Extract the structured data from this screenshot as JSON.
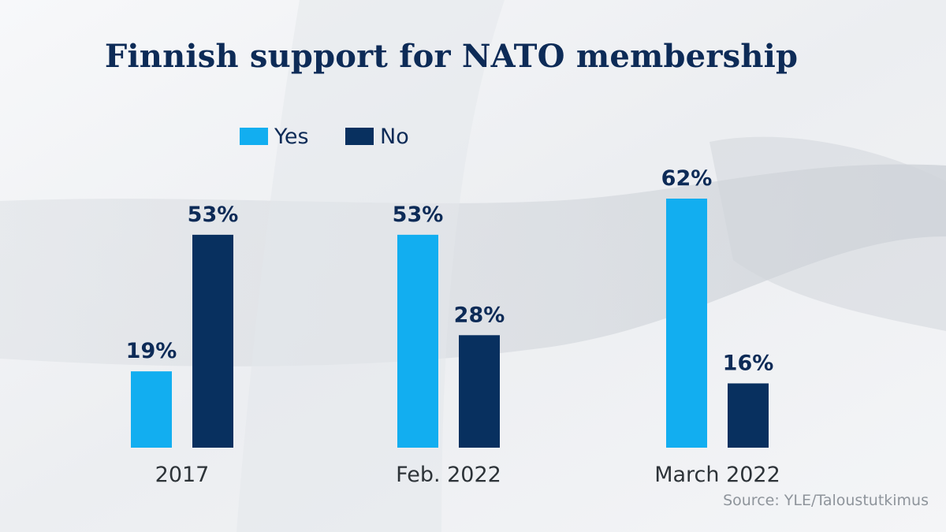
{
  "title": "Finnish support for NATO membership",
  "source": "Source: YLE/Taloustutkimus",
  "colors": {
    "yes": "#12aef0",
    "no": "#08305f",
    "text": "#0d2b57",
    "axis_label": "#2d3338"
  },
  "chart_data": {
    "type": "bar",
    "title": "Finnish support for NATO membership",
    "categories": [
      "2017",
      "Feb. 2022",
      "March 2022"
    ],
    "series": [
      {
        "name": "Yes",
        "values": [
          19,
          53,
          62
        ],
        "value_labels": [
          "19%",
          "53%",
          "62%"
        ]
      },
      {
        "name": "No",
        "values": [
          53,
          28,
          16
        ],
        "value_labels": [
          "53%",
          "28%",
          "16%"
        ]
      }
    ],
    "ylim": [
      0,
      62
    ],
    "grid": false,
    "legend_position": "top-left"
  }
}
